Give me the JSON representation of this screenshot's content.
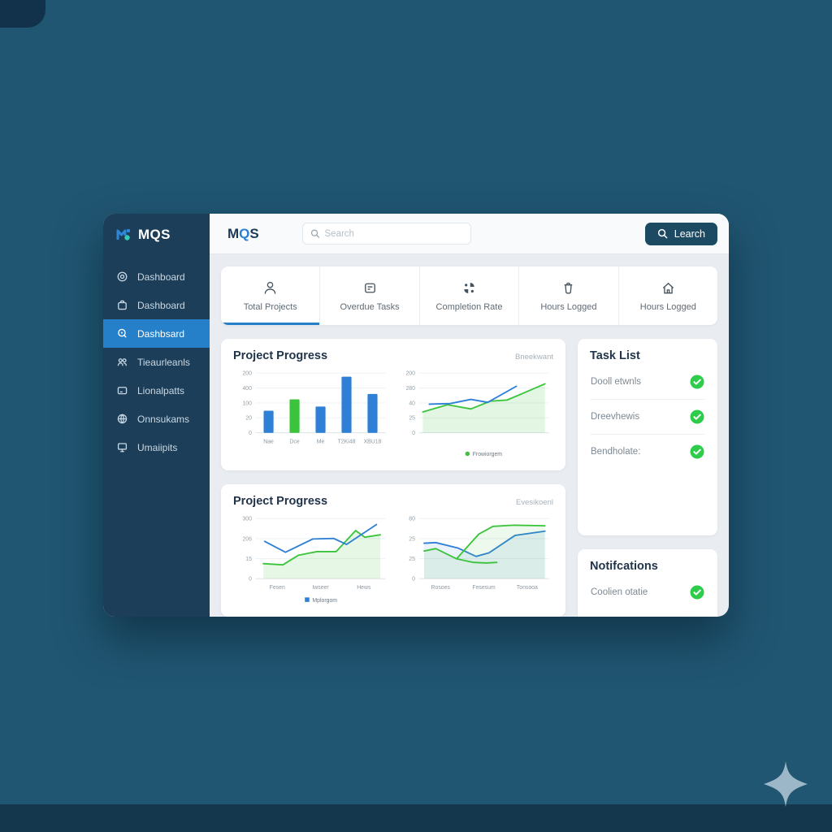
{
  "colors": {
    "accent_blue": "#2680c9",
    "navy_button": "#1d4a63",
    "check_green": "#2ecc4b",
    "chart_blue": "#2e7fd6",
    "chart_green": "#3bc43b",
    "page_background": "#205672",
    "sidebar_background": "#1c3e58"
  },
  "sidebar": {
    "logo": "MQS",
    "items": [
      {
        "label": "Dashboard",
        "active": false
      },
      {
        "label": "Dashboard",
        "active": false
      },
      {
        "label": "Dashbsard",
        "active": true
      },
      {
        "label": "Tieaurleanls",
        "active": false
      },
      {
        "label": "Lionalpatts",
        "active": false
      },
      {
        "label": "Onnsukams",
        "active": false
      },
      {
        "label": "Umaiipits",
        "active": false
      }
    ]
  },
  "topbar": {
    "logo_m": "M",
    "logo_q": "Q",
    "logo_s": "S",
    "search_placeholder": "Search",
    "search_button": "Learch"
  },
  "stats": {
    "items": [
      {
        "label": "Total Projects",
        "icon": "user-icon",
        "active": true
      },
      {
        "label": "Overdue Tasks",
        "icon": "card-icon",
        "active": false
      },
      {
        "label": "Completion Rate",
        "icon": "pie-pieces-icon",
        "active": false
      },
      {
        "label": "Hours Logged",
        "icon": "trash-icon",
        "active": false
      },
      {
        "label": "Hours Logged",
        "icon": "home-icon",
        "active": false
      }
    ]
  },
  "cards": {
    "progress1": {
      "title": "Project Progress",
      "tag": "Bneekwant"
    },
    "progress2": {
      "title": "Project Progress",
      "tag": "Evesikoenl"
    },
    "tasks": {
      "title": "Task List",
      "items": [
        "Dooll etwnls",
        "Dreevhewis",
        "Bendholate:"
      ]
    },
    "notifications": {
      "title": "Notifcations",
      "items": [
        "Coolien otatie"
      ]
    }
  },
  "chart_data": [
    {
      "type": "bar",
      "title": "Project Progress (left panel)",
      "yticks": [
        "200",
        "400",
        "100",
        "20",
        "0"
      ],
      "categories": [
        "Nae",
        "Dce",
        "Me",
        "T2Ki48",
        "XBU18"
      ],
      "values": [
        37,
        56,
        44,
        94,
        65
      ],
      "colors": [
        "#2e7fd6",
        "#3bc43b",
        "#2e7fd6",
        "#2e7fd6",
        "#2e7fd6"
      ],
      "grid": true
    },
    {
      "type": "line",
      "title": "Project Progress (right panel)",
      "yticks": [
        "200",
        "280",
        "40",
        "25",
        "0"
      ],
      "xlabels": [],
      "series": [
        {
          "name": "Frowiorgem",
          "color": "#3bc43b",
          "fill": "rgba(76,199,80,0.16)",
          "points": [
            [
              3,
              35
            ],
            [
              22,
              47
            ],
            [
              40,
              40
            ],
            [
              55,
              53
            ],
            [
              68,
              55
            ],
            [
              97,
              82
            ]
          ]
        },
        {
          "name": "blue-line",
          "color": "#2e7fd6",
          "points": [
            [
              8,
              48
            ],
            [
              24,
              49
            ],
            [
              40,
              56
            ],
            [
              53,
              51
            ],
            [
              75,
              78
            ]
          ]
        }
      ],
      "legend": [
        {
          "label": "Frowiorgem",
          "color": "#3bc43b",
          "shape": "circle"
        }
      ],
      "grid": true
    },
    {
      "type": "line",
      "title": "Project Progress 2 (left panel)",
      "yticks": [
        "300",
        "206",
        "15",
        "0"
      ],
      "xlabels": [
        "Fesen",
        "Iwseer",
        "Hews"
      ],
      "series": [
        {
          "name": "green-line",
          "color": "#3bc43b",
          "fill": "rgba(76,199,80,0.14)",
          "points": [
            [
              6,
              25
            ],
            [
              21,
              23
            ],
            [
              33,
              39
            ],
            [
              47,
              45
            ],
            [
              62,
              45
            ],
            [
              77,
              80
            ],
            [
              84,
              69
            ],
            [
              96,
              73
            ]
          ]
        },
        {
          "name": "Mplorgom",
          "color": "#2e7fd6",
          "points": [
            [
              7,
              62
            ],
            [
              23,
              44
            ],
            [
              44,
              66
            ],
            [
              60,
              67
            ],
            [
              70,
              57
            ],
            [
              93,
              90
            ]
          ]
        }
      ],
      "legend": [
        {
          "label": "Mplorgom",
          "color": "#2e7fd6",
          "shape": "square"
        }
      ],
      "grid": true
    },
    {
      "type": "line",
      "title": "Project Progress 2 (right panel)",
      "yticks": [
        "80",
        "25",
        "25",
        "0"
      ],
      "xlabels": [
        "Rosoes",
        "Fesesum",
        "Tonsooa"
      ],
      "series": [
        {
          "name": "blue-line",
          "color": "#2e7fd6",
          "fill": "rgba(46,127,214,0.10)",
          "points": [
            [
              4,
              59
            ],
            [
              13,
              60
            ],
            [
              30,
              51
            ],
            [
              44,
              37
            ],
            [
              54,
              43
            ],
            [
              74,
              72
            ],
            [
              97,
              79
            ]
          ]
        },
        {
          "name": "green-line",
          "color": "#3bc43b",
          "fill": "rgba(76,199,80,0.10)",
          "points": [
            [
              4,
              46
            ],
            [
              13,
              50
            ],
            [
              29,
              33
            ],
            [
              46,
              74
            ],
            [
              57,
              87
            ],
            [
              73,
              89
            ],
            [
              97,
              88
            ]
          ]
        },
        {
          "name": "green-segment",
          "color": "#3bc43b",
          "points": [
            [
              29,
              33
            ],
            [
              42,
              27
            ],
            [
              52,
              26
            ],
            [
              60,
              27
            ]
          ]
        }
      ],
      "legend": [],
      "grid": true
    }
  ]
}
